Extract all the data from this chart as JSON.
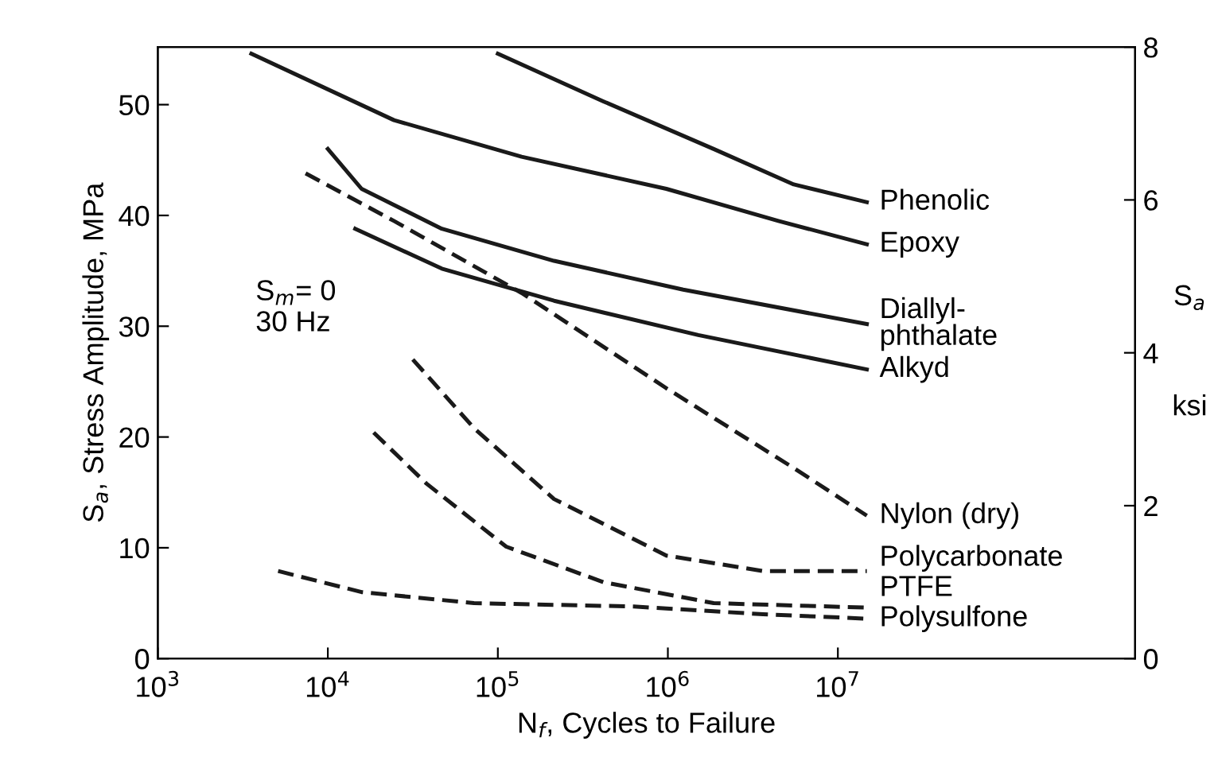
{
  "chart_data": {
    "type": "line",
    "xlabel": "N$_{f}$, Cycles to Failure",
    "ylabel": "S$_{a}$, Stress Amplitude, MPa",
    "y2label": "S$_{a}$\nksi",
    "log": "x",
    "xlim": [
      1000,
      560000000
    ],
    "xticks": [
      {
        "value": 1000,
        "label": "10$^{3}$"
      },
      {
        "value": 10000,
        "label": "10$^{4}$"
      },
      {
        "value": 100000,
        "label": "10$^{5}$"
      },
      {
        "value": 1000000,
        "label": "10$^{6}$"
      },
      {
        "value": 10000000,
        "label": "10$^{7}$"
      }
    ],
    "ylim": [
      0,
      55.2
    ],
    "yticks": [
      0,
      10,
      20,
      30,
      40,
      50
    ],
    "y2lim": [
      0,
      8
    ],
    "y2ticks": [
      0,
      2,
      4,
      6,
      8
    ],
    "grid": false,
    "legend": false,
    "marker": "none",
    "annotations": [
      "S$_{m}$= 0\n30 Hz"
    ],
    "series": [
      {
        "name": "Phenolic",
        "color": "#1a1a1a",
        "line_style": "solid",
        "x": [
          100000,
          417000,
          1860000,
          5500000,
          14800000
        ],
        "values": [
          54.6,
          50.3,
          46,
          42.8,
          41.2
        ]
      },
      {
        "name": "Epoxy",
        "color": "#1a1a1a",
        "line_style": "solid",
        "x": [
          3550,
          24500,
          138000,
          980000,
          4470000,
          14800000
        ],
        "values": [
          54.6,
          48.6,
          45.3,
          42.4,
          39.5,
          37.4
        ]
      },
      {
        "name": "Diallyl-\nphthalate",
        "color": "#1a1a1a",
        "line_style": "solid",
        "x": [
          10000,
          15800,
          46800,
          214000,
          1230000,
          14800000
        ],
        "values": [
          46,
          42.4,
          38.8,
          35.9,
          33.3,
          30.2
        ]
      },
      {
        "name": "Alkyd",
        "color": "#1a1a1a",
        "line_style": "solid",
        "x": [
          14500,
          46800,
          214000,
          1510000,
          14800000
        ],
        "values": [
          38.8,
          35.2,
          32.3,
          29.2,
          26.1
        ]
      },
      {
        "name": "Nylon (dry)",
        "color": "#1a1a1a",
        "line_style": "dashed",
        "x": [
          7400,
          24500,
          138000,
          980000,
          5500000,
          14800000
        ],
        "values": [
          43.8,
          39.5,
          33,
          24.4,
          17.2,
          12.9
        ]
      },
      {
        "name": "Polycarbonate",
        "color": "#1a1a1a",
        "line_style": "dashed",
        "x": [
          31600,
          72400,
          214000,
          980000,
          3630000,
          14800000
        ],
        "values": [
          27,
          20.8,
          14.4,
          9.3,
          7.9,
          7.9
        ]
      },
      {
        "name": "PTFE",
        "color": "#1a1a1a",
        "line_style": "dashed",
        "x": [
          18600,
          38000,
          112000,
          417000,
          1860000,
          14800000
        ],
        "values": [
          20.4,
          15.8,
          10.1,
          6.9,
          5,
          4.6
        ]
      },
      {
        "name": "Polysulfone",
        "color": "#1a1a1a",
        "line_style": "dashed",
        "x": [
          5100,
          15800,
          72400,
          631000,
          3630000,
          14800000
        ],
        "values": [
          7.9,
          6,
          5,
          4.7,
          4,
          3.6
        ]
      }
    ]
  }
}
